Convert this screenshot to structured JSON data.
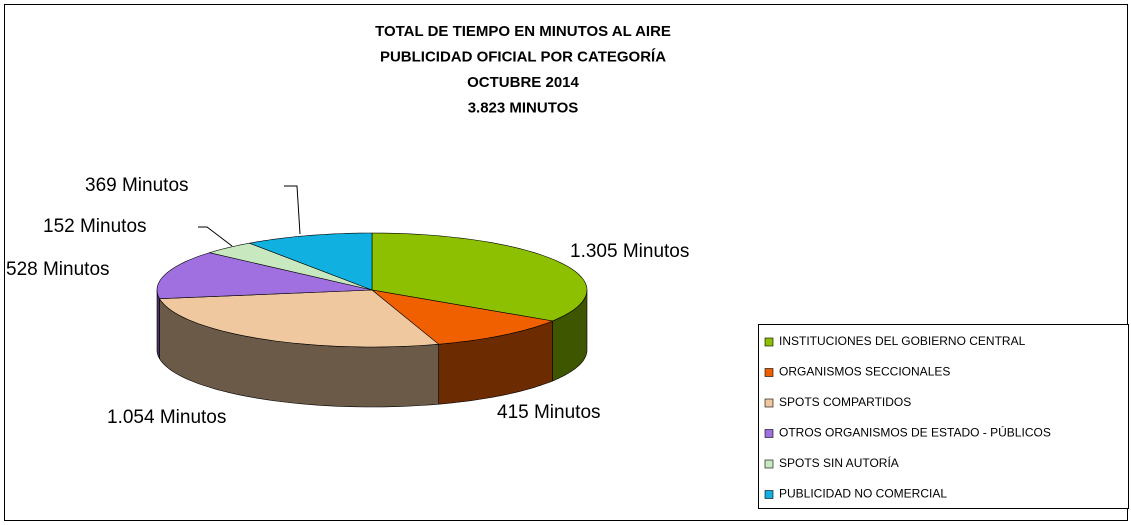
{
  "chart_data": {
    "type": "pie",
    "title": [
      "TOTAL DE TIEMPO EN MINUTOS AL AIRE",
      "PUBLICIDAD OFICIAL POR CATEGORÍA",
      "OCTUBRE 2014",
      "3.823 MINUTOS"
    ],
    "categories": [
      "INSTITUCIONES DEL GOBIERNO CENTRAL",
      "ORGANISMOS SECCIONALES",
      "SPOTS COMPARTIDOS",
      "OTROS ORGANISMOS DE ESTADO - PÚBLICOS",
      "SPOTS SIN AUTORÍA",
      "PUBLICIDAD NO COMERCIAL"
    ],
    "values": [
      1305,
      415,
      1054,
      528,
      152,
      369
    ],
    "value_labels": [
      "1.305 Minutos",
      "415 Minutos",
      "1.054 Minutos",
      "528 Minutos",
      "152 Minutos",
      "369 Minutos"
    ],
    "colors": [
      "#8cc000",
      "#f06000",
      "#f0c8a0",
      "#a070e0",
      "#c8e8c0",
      "#10b0e0"
    ],
    "legend": "right"
  }
}
